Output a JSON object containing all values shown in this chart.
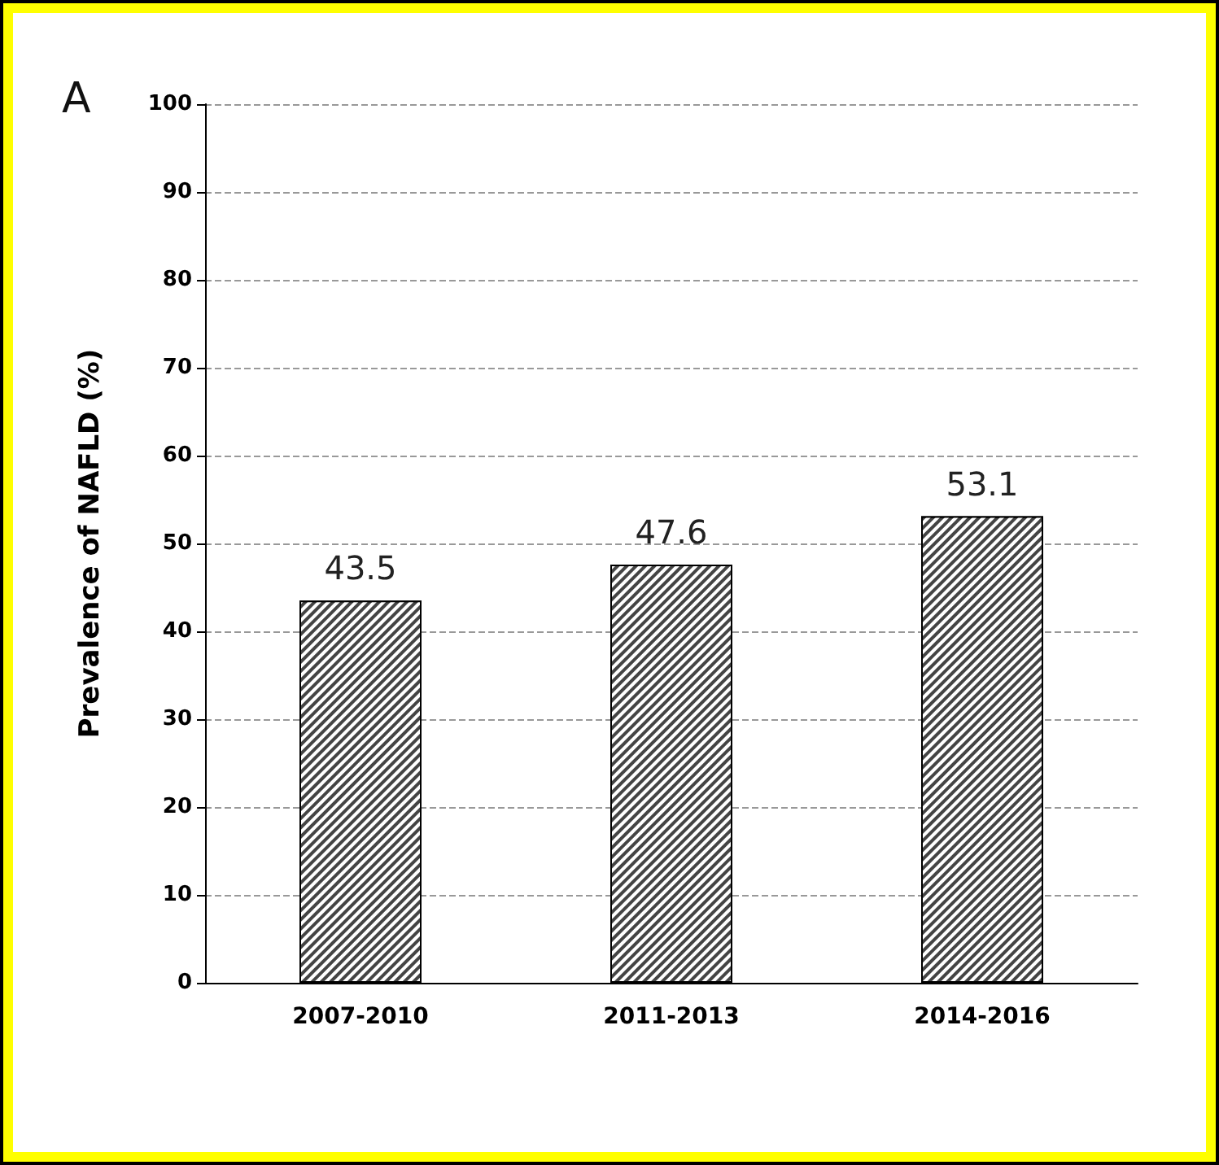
{
  "chart_data": {
    "type": "bar",
    "annotations": [
      "A"
    ],
    "ylabel": "Prevalence of NAFLD (%)",
    "categories": [
      "2007-2010",
      "2011-2013",
      "2014-2016"
    ],
    "values": [
      43.5,
      47.6,
      53.1
    ],
    "color": "#444444",
    "data_labels": true,
    "ylim": [
      0,
      100
    ],
    "yticks": [
      0,
      10,
      20,
      30,
      40,
      50,
      60,
      70,
      80,
      90,
      100
    ],
    "grid": "y"
  }
}
